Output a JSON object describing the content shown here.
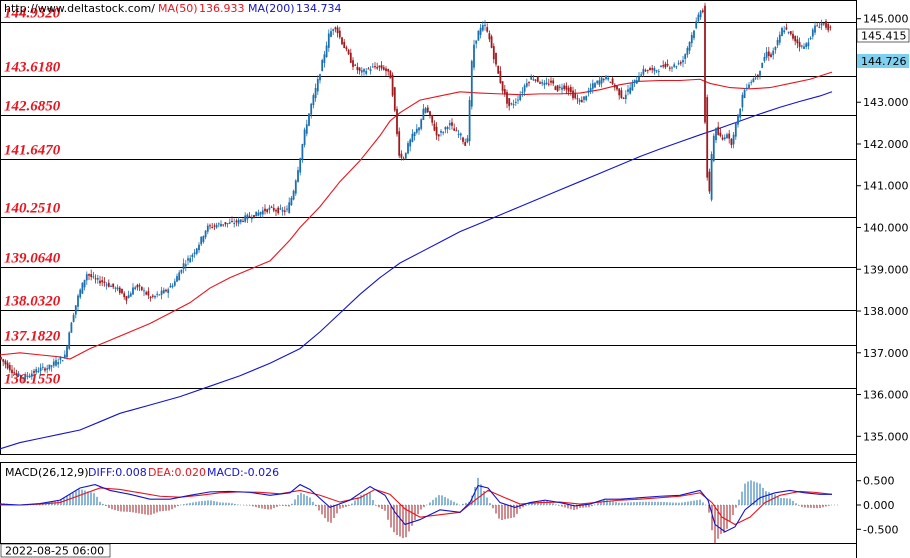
{
  "header": {
    "site": "http://www.deltastock.com/",
    "ma50_label": "MA(50)",
    "ma50_value": "136.933",
    "ma200_label": "MA(200)",
    "ma200_value": "134.734"
  },
  "price_labels": {
    "top_box": "145.415",
    "current_box": "144.726"
  },
  "macd_header": {
    "name": "MACD(26,12,9)",
    "diff": "DIFF:0.008",
    "dea": "DEA:0.020",
    "macd": "MACD:-0.026"
  },
  "footer": {
    "date": "2022-08-25 06:00"
  },
  "colors": {
    "bull": "#1b6fb0",
    "bear": "#a0191e",
    "ma50": "#e8141e",
    "ma200": "#1414c8",
    "level_text": "#e8141e",
    "current_box": "#7fd0ee"
  },
  "chart_data": {
    "type": "candlestick",
    "price_axis": {
      "ylim": [
        134.6,
        145.4
      ],
      "ticks": [
        "145.000",
        "144.000",
        "143.000",
        "142.000",
        "141.000",
        "140.000",
        "139.000",
        "138.000",
        "137.000",
        "136.000",
        "135.000"
      ]
    },
    "levels": [
      "144.9320",
      "143.6180",
      "142.6850",
      "141.6470",
      "140.2510",
      "139.0640",
      "138.0320",
      "137.1820",
      "136.1550"
    ],
    "price_path": [
      [
        0,
        136.9
      ],
      [
        8,
        136.7
      ],
      [
        16,
        136.5
      ],
      [
        24,
        136.4
      ],
      [
        32,
        136.5
      ],
      [
        40,
        136.6
      ],
      [
        50,
        136.65
      ],
      [
        58,
        136.8
      ],
      [
        66,
        136.9
      ],
      [
        72,
        137.7
      ],
      [
        80,
        138.4
      ],
      [
        88,
        138.9
      ],
      [
        96,
        138.75
      ],
      [
        104,
        138.7
      ],
      [
        112,
        138.6
      ],
      [
        120,
        138.5
      ],
      [
        128,
        138.3
      ],
      [
        136,
        138.6
      ],
      [
        144,
        138.5
      ],
      [
        152,
        138.3
      ],
      [
        160,
        138.4
      ],
      [
        168,
        138.5
      ],
      [
        176,
        138.7
      ],
      [
        184,
        139.1
      ],
      [
        192,
        139.3
      ],
      [
        200,
        139.6
      ],
      [
        208,
        140.0
      ],
      [
        216,
        140.05
      ],
      [
        224,
        140.1
      ],
      [
        232,
        140.1
      ],
      [
        240,
        140.15
      ],
      [
        248,
        140.25
      ],
      [
        256,
        140.3
      ],
      [
        264,
        140.4
      ],
      [
        272,
        140.45
      ],
      [
        280,
        140.4
      ],
      [
        288,
        140.4
      ],
      [
        294,
        140.8
      ],
      [
        300,
        141.5
      ],
      [
        306,
        142.3
      ],
      [
        312,
        142.9
      ],
      [
        318,
        143.4
      ],
      [
        324,
        144.0
      ],
      [
        330,
        144.6
      ],
      [
        336,
        144.85
      ],
      [
        342,
        144.5
      ],
      [
        348,
        144.2
      ],
      [
        354,
        143.9
      ],
      [
        362,
        143.7
      ],
      [
        370,
        143.8
      ],
      [
        378,
        143.85
      ],
      [
        386,
        143.8
      ],
      [
        392,
        143.6
      ],
      [
        396,
        142.8
      ],
      [
        400,
        141.8
      ],
      [
        404,
        141.6
      ],
      [
        408,
        141.9
      ],
      [
        414,
        142.2
      ],
      [
        420,
        142.4
      ],
      [
        426,
        142.9
      ],
      [
        432,
        142.6
      ],
      [
        438,
        142.2
      ],
      [
        444,
        142.3
      ],
      [
        450,
        142.5
      ],
      [
        456,
        142.3
      ],
      [
        462,
        142.2
      ],
      [
        468,
        141.9
      ],
      [
        474,
        144.3
      ],
      [
        480,
        144.7
      ],
      [
        486,
        144.85
      ],
      [
        492,
        144.4
      ],
      [
        498,
        143.8
      ],
      [
        504,
        143.3
      ],
      [
        510,
        142.9
      ],
      [
        516,
        143.0
      ],
      [
        522,
        143.2
      ],
      [
        528,
        143.5
      ],
      [
        534,
        143.6
      ],
      [
        540,
        143.5
      ],
      [
        546,
        143.4
      ],
      [
        552,
        143.5
      ],
      [
        558,
        143.3
      ],
      [
        564,
        143.4
      ],
      [
        570,
        143.3
      ],
      [
        576,
        143.1
      ],
      [
        582,
        143.0
      ],
      [
        588,
        143.2
      ],
      [
        594,
        143.4
      ],
      [
        600,
        143.5
      ],
      [
        606,
        143.6
      ],
      [
        612,
        143.5
      ],
      [
        618,
        143.3
      ],
      [
        624,
        143.1
      ],
      [
        630,
        143.3
      ],
      [
        636,
        143.5
      ],
      [
        642,
        143.7
      ],
      [
        648,
        143.8
      ],
      [
        654,
        143.75
      ],
      [
        660,
        143.8
      ],
      [
        666,
        143.9
      ],
      [
        672,
        143.85
      ],
      [
        678,
        143.9
      ],
      [
        684,
        144.0
      ],
      [
        690,
        144.4
      ],
      [
        696,
        144.8
      ],
      [
        700,
        145.1
      ],
      [
        704,
        145.35
      ],
      [
        707,
        141.7
      ],
      [
        710,
        140.6
      ],
      [
        713,
        141.8
      ],
      [
        716,
        142.4
      ],
      [
        720,
        142.2
      ],
      [
        724,
        142.1
      ],
      [
        728,
        142.3
      ],
      [
        732,
        141.95
      ],
      [
        736,
        142.4
      ],
      [
        740,
        142.7
      ],
      [
        744,
        143.2
      ],
      [
        748,
        143.4
      ],
      [
        752,
        143.5
      ],
      [
        756,
        143.6
      ],
      [
        760,
        143.7
      ],
      [
        764,
        144.0
      ],
      [
        768,
        144.2
      ],
      [
        772,
        144.1
      ],
      [
        776,
        144.3
      ],
      [
        780,
        144.5
      ],
      [
        784,
        144.8
      ],
      [
        788,
        144.7
      ],
      [
        792,
        144.6
      ],
      [
        796,
        144.5
      ],
      [
        800,
        144.4
      ],
      [
        804,
        144.3
      ],
      [
        808,
        144.4
      ],
      [
        812,
        144.6
      ],
      [
        816,
        144.8
      ],
      [
        820,
        144.85
      ],
      [
        824,
        144.9
      ],
      [
        828,
        144.8
      ],
      [
        832,
        144.75
      ]
    ],
    "ma50_path": [
      [
        0,
        136.95
      ],
      [
        20,
        137.0
      ],
      [
        40,
        136.95
      ],
      [
        60,
        136.9
      ],
      [
        70,
        136.85
      ],
      [
        90,
        137.1
      ],
      [
        110,
        137.3
      ],
      [
        130,
        137.5
      ],
      [
        150,
        137.7
      ],
      [
        170,
        137.95
      ],
      [
        190,
        138.2
      ],
      [
        210,
        138.55
      ],
      [
        230,
        138.8
      ],
      [
        250,
        139.0
      ],
      [
        270,
        139.2
      ],
      [
        290,
        139.7
      ],
      [
        300,
        140.0
      ],
      [
        320,
        140.5
      ],
      [
        340,
        141.1
      ],
      [
        360,
        141.6
      ],
      [
        380,
        142.2
      ],
      [
        390,
        142.55
      ],
      [
        400,
        142.75
      ],
      [
        420,
        143.05
      ],
      [
        440,
        143.15
      ],
      [
        460,
        143.25
      ],
      [
        480,
        143.22
      ],
      [
        500,
        143.2
      ],
      [
        520,
        143.18
      ],
      [
        540,
        143.2
      ],
      [
        560,
        143.2
      ],
      [
        580,
        143.22
      ],
      [
        600,
        143.3
      ],
      [
        620,
        143.42
      ],
      [
        640,
        143.5
      ],
      [
        660,
        143.52
      ],
      [
        680,
        143.52
      ],
      [
        700,
        143.55
      ],
      [
        710,
        143.45
      ],
      [
        730,
        143.35
      ],
      [
        750,
        143.32
      ],
      [
        770,
        143.35
      ],
      [
        790,
        143.45
      ],
      [
        810,
        143.55
      ],
      [
        832,
        143.72
      ]
    ],
    "ma200_path": [
      [
        0,
        134.7
      ],
      [
        20,
        134.85
      ],
      [
        40,
        134.95
      ],
      [
        60,
        135.05
      ],
      [
        80,
        135.15
      ],
      [
        100,
        135.35
      ],
      [
        120,
        135.55
      ],
      [
        150,
        135.75
      ],
      [
        180,
        135.95
      ],
      [
        210,
        136.2
      ],
      [
        240,
        136.45
      ],
      [
        270,
        136.75
      ],
      [
        300,
        137.1
      ],
      [
        320,
        137.5
      ],
      [
        340,
        137.95
      ],
      [
        360,
        138.4
      ],
      [
        380,
        138.8
      ],
      [
        400,
        139.15
      ],
      [
        420,
        139.4
      ],
      [
        440,
        139.65
      ],
      [
        460,
        139.9
      ],
      [
        480,
        140.1
      ],
      [
        500,
        140.3
      ],
      [
        520,
        140.5
      ],
      [
        540,
        140.7
      ],
      [
        560,
        140.9
      ],
      [
        580,
        141.1
      ],
      [
        600,
        141.3
      ],
      [
        620,
        141.5
      ],
      [
        640,
        141.7
      ],
      [
        660,
        141.88
      ],
      [
        680,
        142.05
      ],
      [
        700,
        142.22
      ],
      [
        720,
        142.38
      ],
      [
        740,
        142.55
      ],
      [
        760,
        142.72
      ],
      [
        780,
        142.88
      ],
      [
        800,
        143.02
      ],
      [
        820,
        143.15
      ],
      [
        832,
        143.25
      ]
    ],
    "macd_axis": {
      "ylim": [
        -0.72,
        0.72
      ],
      "ticks": [
        "0.500",
        "0.000",
        "-0.500"
      ]
    },
    "diff_path": [
      [
        0,
        0.02
      ],
      [
        20,
        0.0
      ],
      [
        40,
        0.03
      ],
      [
        60,
        0.1
      ],
      [
        80,
        0.35
      ],
      [
        95,
        0.42
      ],
      [
        110,
        0.3
      ],
      [
        130,
        0.22
      ],
      [
        150,
        0.12
      ],
      [
        170,
        0.12
      ],
      [
        190,
        0.2
      ],
      [
        210,
        0.27
      ],
      [
        230,
        0.28
      ],
      [
        250,
        0.26
      ],
      [
        270,
        0.2
      ],
      [
        290,
        0.25
      ],
      [
        300,
        0.42
      ],
      [
        310,
        0.32
      ],
      [
        330,
        -0.05
      ],
      [
        350,
        0.1
      ],
      [
        370,
        0.38
      ],
      [
        385,
        0.2
      ],
      [
        395,
        -0.15
      ],
      [
        405,
        -0.4
      ],
      [
        420,
        -0.3
      ],
      [
        440,
        -0.1
      ],
      [
        460,
        -0.15
      ],
      [
        470,
        0.05
      ],
      [
        478,
        0.4
      ],
      [
        488,
        0.35
      ],
      [
        500,
        0.05
      ],
      [
        515,
        -0.05
      ],
      [
        530,
        0.05
      ],
      [
        545,
        0.1
      ],
      [
        560,
        0.05
      ],
      [
        575,
        -0.02
      ],
      [
        590,
        0.02
      ],
      [
        605,
        0.12
      ],
      [
        620,
        0.12
      ],
      [
        640,
        0.15
      ],
      [
        660,
        0.18
      ],
      [
        680,
        0.2
      ],
      [
        700,
        0.3
      ],
      [
        708,
        0.1
      ],
      [
        715,
        -0.4
      ],
      [
        725,
        -0.55
      ],
      [
        735,
        -0.45
      ],
      [
        745,
        -0.1
      ],
      [
        760,
        0.15
      ],
      [
        775,
        0.25
      ],
      [
        790,
        0.3
      ],
      [
        805,
        0.25
      ],
      [
        820,
        0.22
      ],
      [
        832,
        0.22
      ]
    ],
    "dea_path": [
      [
        0,
        0.0
      ],
      [
        20,
        0.0
      ],
      [
        40,
        0.02
      ],
      [
        60,
        0.05
      ],
      [
        80,
        0.2
      ],
      [
        100,
        0.35
      ],
      [
        120,
        0.32
      ],
      [
        140,
        0.25
      ],
      [
        160,
        0.18
      ],
      [
        180,
        0.16
      ],
      [
        200,
        0.2
      ],
      [
        220,
        0.25
      ],
      [
        240,
        0.27
      ],
      [
        260,
        0.26
      ],
      [
        280,
        0.23
      ],
      [
        300,
        0.3
      ],
      [
        320,
        0.2
      ],
      [
        340,
        0.06
      ],
      [
        360,
        0.15
      ],
      [
        375,
        0.32
      ],
      [
        390,
        0.22
      ],
      [
        405,
        -0.08
      ],
      [
        420,
        -0.25
      ],
      [
        440,
        -0.2
      ],
      [
        460,
        -0.15
      ],
      [
        475,
        0.1
      ],
      [
        488,
        0.3
      ],
      [
        505,
        0.15
      ],
      [
        520,
        0.02
      ],
      [
        540,
        0.05
      ],
      [
        560,
        0.06
      ],
      [
        580,
        0.02
      ],
      [
        600,
        0.06
      ],
      [
        620,
        0.1
      ],
      [
        640,
        0.12
      ],
      [
        660,
        0.15
      ],
      [
        680,
        0.18
      ],
      [
        700,
        0.25
      ],
      [
        712,
        0.05
      ],
      [
        722,
        -0.25
      ],
      [
        735,
        -0.4
      ],
      [
        750,
        -0.25
      ],
      [
        765,
        0.05
      ],
      [
        780,
        0.2
      ],
      [
        800,
        0.28
      ],
      [
        815,
        0.26
      ],
      [
        832,
        0.22
      ]
    ]
  }
}
